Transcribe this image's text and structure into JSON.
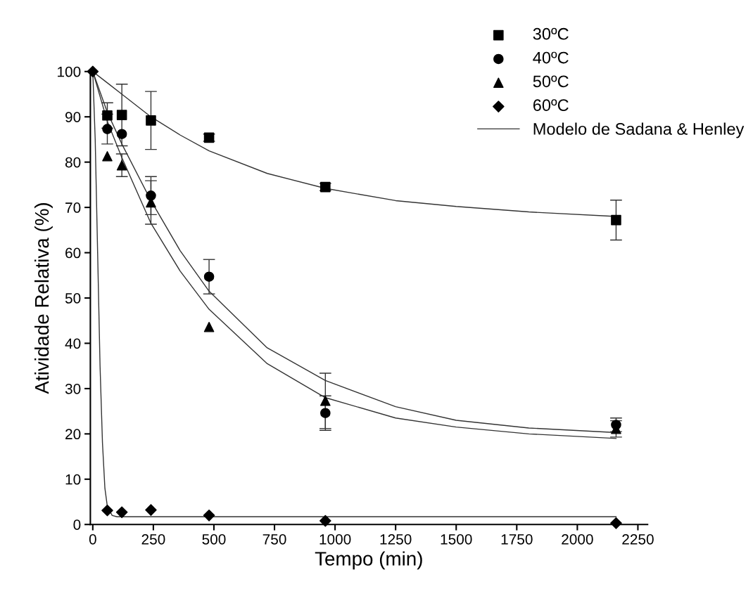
{
  "chart_data": {
    "type": "scatter",
    "xlabel": "Tempo (min)",
    "ylabel": "Atividade Relativa (%)",
    "xlim": [
      -10,
      2290
    ],
    "ylim": [
      0,
      100
    ],
    "xticks": [
      0,
      250,
      500,
      750,
      1000,
      1250,
      1500,
      1750,
      2000,
      2250
    ],
    "yticks": [
      0,
      10,
      20,
      30,
      40,
      50,
      60,
      70,
      80,
      90,
      100
    ],
    "grid": false,
    "legend": "top right",
    "series": [
      {
        "name": "30ºC",
        "marker": "square",
        "color": "#000000",
        "x": [
          60,
          120,
          240,
          480,
          960,
          2160
        ],
        "values": [
          90.3,
          90.4,
          89.2,
          85.4,
          74.5,
          67.2
        ],
        "errors": [
          2.8,
          6.8,
          6.4,
          0.8,
          0.8,
          4.4
        ]
      },
      {
        "name": "40ºC",
        "marker": "circle",
        "color": "#000000",
        "x": [
          60,
          120,
          240,
          480,
          960,
          2160
        ],
        "values": [
          87.3,
          86.2,
          72.6,
          54.7,
          24.6,
          22.0
        ],
        "errors": [
          3.3,
          null,
          4.2,
          3.8,
          3.8,
          1.5
        ]
      },
      {
        "name": "50ºC",
        "marker": "triangle",
        "color": "#000000",
        "x": [
          60,
          120,
          240,
          480,
          960,
          2160
        ],
        "values": [
          81.3,
          79.3,
          71.1,
          43.6,
          27.3,
          21.1
        ],
        "errors": [
          null,
          2.5,
          4.8,
          null,
          6.1,
          1.8
        ]
      },
      {
        "name": "60ºC",
        "marker": "diamond",
        "color": "#000000",
        "x": [
          0,
          60,
          120,
          240,
          480,
          960,
          2160
        ],
        "values": [
          100,
          3.1,
          2.7,
          3.2,
          2.0,
          0.8,
          0.3
        ]
      },
      {
        "name": "Modelo de Sadana & Henley",
        "type": "line",
        "marker": "none",
        "line_style": "solid",
        "color": "#333333",
        "x": [
          0,
          60,
          120,
          240,
          360,
          480,
          720,
          960,
          1250,
          1500,
          1800,
          2160
        ],
        "values": [
          100,
          97.5,
          95,
          90,
          86,
          82.5,
          77.5,
          74.2,
          71.5,
          70.2,
          69,
          68
        ]
      },
      {
        "type": "line",
        "marker": "none",
        "line_style": "solid",
        "color": "#333333",
        "x": [
          0,
          60,
          120,
          240,
          360,
          480,
          720,
          960,
          1250,
          1500,
          1800,
          2160
        ],
        "values": [
          100,
          91,
          84,
          71.5,
          60.5,
          51.5,
          39,
          31.8,
          26,
          23,
          21.3,
          20.3
        ]
      },
      {
        "type": "line",
        "marker": "none",
        "line_style": "solid",
        "color": "#333333",
        "x": [
          0,
          60,
          120,
          240,
          360,
          480,
          720,
          960,
          1250,
          1500,
          1800,
          2160
        ],
        "values": [
          100,
          89,
          81,
          66.5,
          56,
          47.5,
          35.5,
          28,
          23.5,
          21.5,
          20,
          19
        ]
      },
      {
        "type": "line",
        "marker": "none",
        "line_style": "solid",
        "color": "#333333",
        "x": [
          0,
          10,
          20,
          30,
          40,
          50,
          60,
          80,
          100,
          2160
        ],
        "values": [
          100,
          85,
          60,
          35,
          18,
          8,
          4,
          2,
          1.7,
          1.7
        ]
      }
    ]
  }
}
